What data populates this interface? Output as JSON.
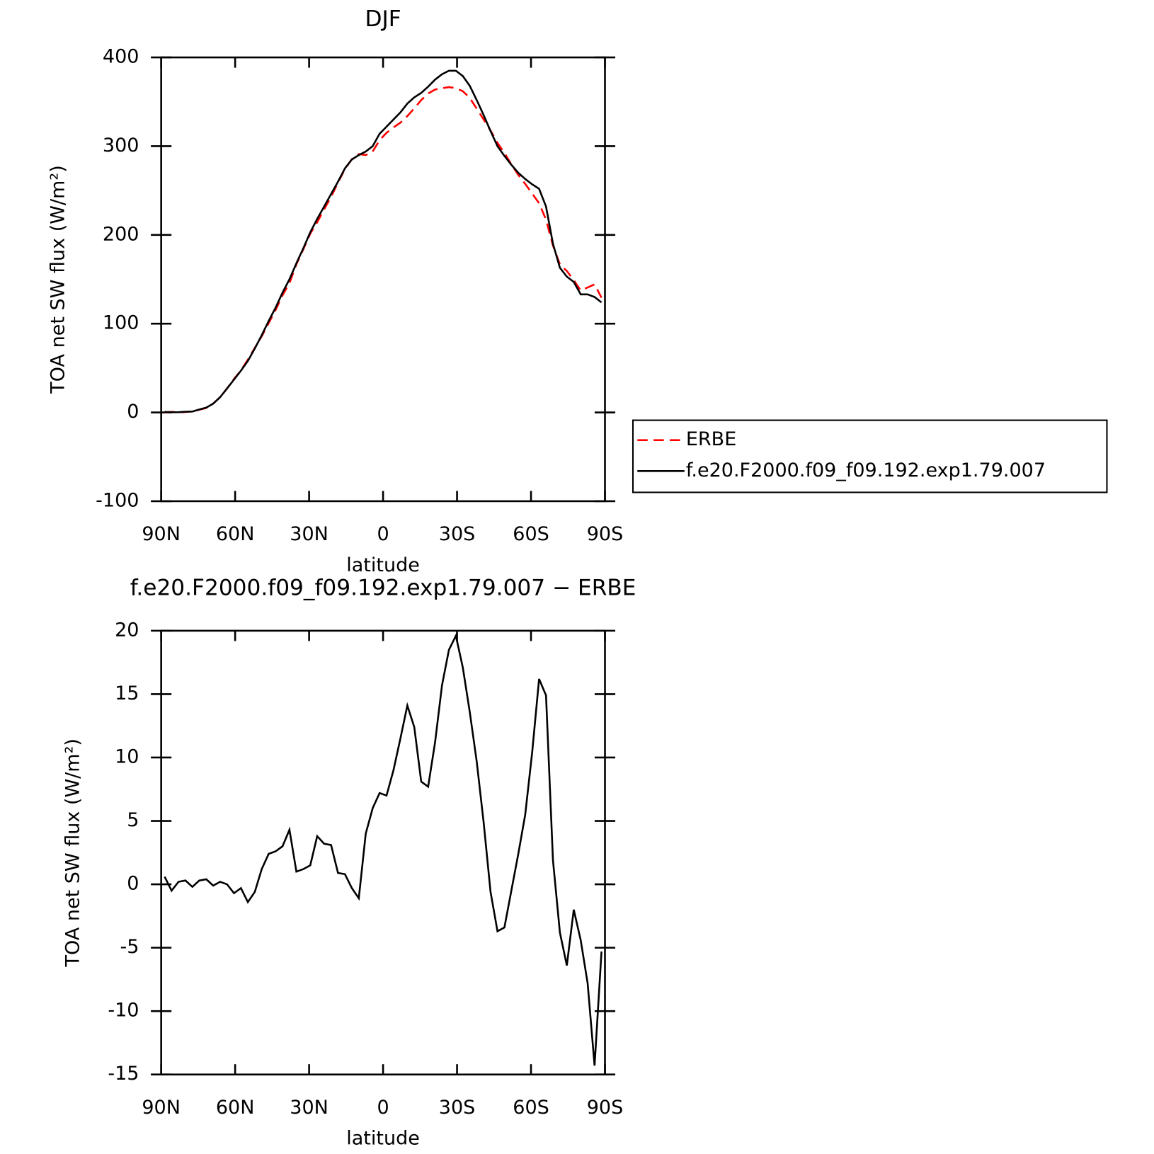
{
  "chart_data": [
    {
      "type": "line",
      "title": "DJF",
      "xlabel": "latitude",
      "ylabel": "TOA net SW flux (W/m²)",
      "xlim": [
        90,
        -90
      ],
      "xticks": [
        {
          "value": 90,
          "label": "90N"
        },
        {
          "value": 60,
          "label": "60N"
        },
        {
          "value": 30,
          "label": "30N"
        },
        0,
        {
          "value": -30,
          "label": "30S"
        },
        {
          "value": -60,
          "label": "60S"
        },
        {
          "value": -90,
          "label": "90S"
        }
      ],
      "ylim": [
        -100,
        400
      ],
      "yticks": [
        -100,
        0,
        100,
        200,
        300,
        400
      ],
      "grid": false,
      "legend": "right",
      "x": [
        88.59375,
        85.78125,
        82.96875,
        80.15625,
        77.34375,
        74.53125,
        71.71875,
        68.90625,
        66.09375,
        63.28125,
        60.46875,
        57.65625,
        54.84375,
        52.03125,
        49.21875,
        46.40625,
        43.59375,
        40.78125,
        37.96875,
        35.15625,
        32.34375,
        29.53125,
        26.71875,
        23.90625,
        21.09375,
        18.28125,
        15.46875,
        12.65625,
        9.84375,
        7.03125,
        4.21875,
        1.40625,
        -1.40625,
        -4.21875,
        -7.03125,
        -9.84375,
        -12.65625,
        -15.46875,
        -18.28125,
        -21.09375,
        -23.90625,
        -26.71875,
        -29.53125,
        -32.34375,
        -35.15625,
        -37.96875,
        -40.78125,
        -43.59375,
        -46.40625,
        -49.21875,
        -52.03125,
        -54.84375,
        -57.65625,
        -60.46875,
        -63.28125,
        -66.09375,
        -68.90625,
        -71.71875,
        -74.53125,
        -77.34375,
        -80.15625,
        -82.96875,
        -85.78125,
        -88.59375
      ],
      "series": [
        {
          "name": "ERBE",
          "color": "#ff0000",
          "linestyle": "dashed",
          "values": [
            0,
            0.7,
            0.1,
            0.5,
            1.2,
            3.0,
            5.0,
            10.0,
            17.0,
            27.0,
            37.7,
            47.3,
            59.4,
            72.6,
            85.8,
            100.6,
            115.4,
            132,
            145.7,
            167,
            183.8,
            201.5,
            214.2,
            228.8,
            242.9,
            259.1,
            274.2,
            285.3,
            291.1,
            290,
            294,
            306.8,
            315,
            321,
            326.5,
            333.9,
            342.6,
            351.9,
            359.3,
            363.8,
            365.3,
            366.5,
            365.4,
            361.9,
            354.4,
            342.3,
            330.1,
            317.6,
            303.7,
            292.4,
            279.5,
            267.6,
            257.5,
            246.6,
            235.8,
            217.1,
            188.1,
            166.8,
            159.4,
            149,
            137.4,
            140.8,
            144.3,
            129.3
          ]
        },
        {
          "name": "f.e20.F2000.f09_f09.192.exp1.79.007",
          "color": "#000000",
          "linestyle": "solid",
          "values": [
            0.6,
            0.2,
            0.3,
            0.8,
            1.0,
            3.3,
            5.4,
            9.9,
            17.2,
            27,
            37,
            47,
            58,
            72,
            87,
            103,
            118,
            135,
            150,
            168,
            185,
            203,
            218,
            232,
            246,
            260,
            275,
            285,
            290,
            294,
            300,
            314,
            322,
            330,
            338,
            348,
            355,
            360,
            367,
            375,
            381,
            385,
            385,
            379,
            368,
            352,
            335,
            317,
            300,
            289,
            279,
            270,
            263,
            257,
            252,
            232,
            190,
            163,
            153,
            147,
            133,
            133,
            130,
            124
          ]
        }
      ]
    },
    {
      "type": "line",
      "title": "f.e20.F2000.f09_f09.192.exp1.79.007 − ERBE",
      "xlabel": "latitude",
      "ylabel": "TOA net SW flux (W/m²)",
      "xlim": [
        90,
        -90
      ],
      "xticks": [
        {
          "value": 90,
          "label": "90N"
        },
        {
          "value": 60,
          "label": "60N"
        },
        {
          "value": 30,
          "label": "30N"
        },
        0,
        {
          "value": -30,
          "label": "30S"
        },
        {
          "value": -60,
          "label": "60S"
        },
        {
          "value": -90,
          "label": "90S"
        }
      ],
      "ylim": [
        -15,
        20
      ],
      "yticks": [
        -15,
        -10,
        -5,
        0,
        5,
        10,
        15,
        20
      ],
      "grid": false,
      "x": [
        88.59375,
        85.78125,
        82.96875,
        80.15625,
        77.34375,
        74.53125,
        71.71875,
        68.90625,
        66.09375,
        63.28125,
        60.46875,
        57.65625,
        54.84375,
        52.03125,
        49.21875,
        46.40625,
        43.59375,
        40.78125,
        37.96875,
        35.15625,
        32.34375,
        29.53125,
        26.71875,
        23.90625,
        21.09375,
        18.28125,
        15.46875,
        12.65625,
        9.84375,
        7.03125,
        4.21875,
        1.40625,
        -1.40625,
        -4.21875,
        -7.03125,
        -9.84375,
        -12.65625,
        -15.46875,
        -18.28125,
        -21.09375,
        -23.90625,
        -26.71875,
        -29.53125,
        -32.34375,
        -35.15625,
        -37.96875,
        -40.78125,
        -43.59375,
        -46.40625,
        -49.21875,
        -52.03125,
        -54.84375,
        -57.65625,
        -60.46875,
        -63.28125,
        -66.09375,
        -68.90625,
        -71.71875,
        -74.53125,
        -77.34375,
        -80.15625,
        -82.96875,
        -85.78125,
        -88.59375
      ],
      "series": [
        {
          "color": "#000000",
          "linestyle": "solid",
          "values": [
            0.6,
            -0.5,
            0.2,
            0.3,
            -0.2,
            0.3,
            0.4,
            -0.1,
            0.2,
            0,
            -0.7,
            -0.3,
            -1.4,
            -0.6,
            1.2,
            2.4,
            2.6,
            3.0,
            4.3,
            1.0,
            1.2,
            1.5,
            3.8,
            3.2,
            3.1,
            0.9,
            0.8,
            -0.3,
            -1.1,
            4.0,
            6.0,
            7.2,
            7.0,
            9.0,
            11.5,
            14.1,
            12.4,
            8.1,
            7.7,
            11.2,
            15.7,
            18.5,
            19.6,
            17.1,
            13.6,
            9.7,
            4.9,
            -0.6,
            -3.7,
            -3.4,
            -0.5,
            2.4,
            5.5,
            10.4,
            16.2,
            14.9,
            1.9,
            -3.8,
            -6.4,
            -2.0,
            -4.4,
            -7.8,
            -14.3,
            -5.3
          ]
        }
      ]
    }
  ]
}
